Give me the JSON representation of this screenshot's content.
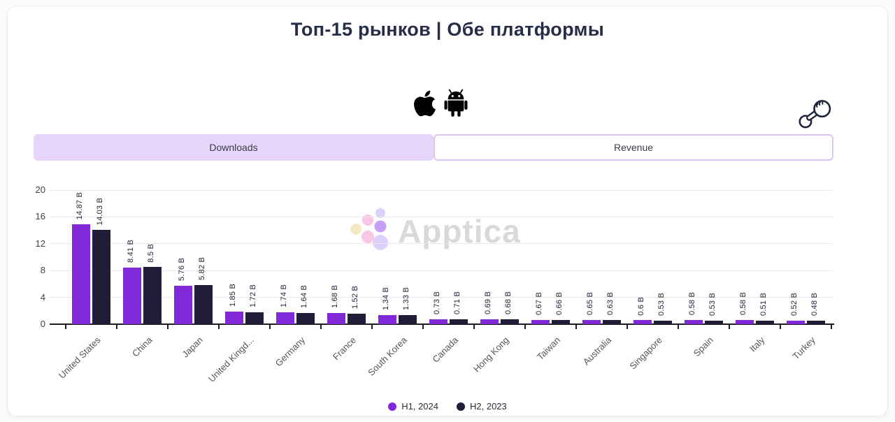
{
  "card": {
    "title": "Топ-15 рынков | Обе платформы"
  },
  "platform_icons": {
    "left": "apple-logo",
    "right": "android-robot"
  },
  "pointer_hint_icon": "hand-click",
  "tabs": [
    {
      "label": "Downloads",
      "active": true
    },
    {
      "label": "Revenue",
      "active": false
    }
  ],
  "watermark": {
    "text": "Apptica"
  },
  "colors": {
    "h1_2024": "#8129d9",
    "h2_2023": "#211d38",
    "active_tab_bg": "#e6d5f9",
    "tab_border": "#dcc6f8",
    "title_text": "#272d49"
  },
  "legend": [
    {
      "label": "H1, 2024",
      "color": "#8129d9"
    },
    {
      "label": "H2, 2023",
      "color": "#211d38"
    }
  ],
  "chart_data": {
    "type": "bar",
    "title": "Топ-15 рынков | Обе платформы",
    "categories": [
      "United States",
      "China",
      "Japan",
      "United Kingd...",
      "Germany",
      "France",
      "South Korea",
      "Canada",
      "Hong Kong",
      "Taiwan",
      "Australia",
      "Singapore",
      "Spain",
      "Italy",
      "Turkey"
    ],
    "series": [
      {
        "name": "H1, 2024",
        "color": "#8129d9",
        "values": [
          14.87,
          8.41,
          5.76,
          1.85,
          1.74,
          1.68,
          1.34,
          0.73,
          0.69,
          0.67,
          0.65,
          0.6,
          0.58,
          0.58,
          0.52
        ],
        "labels": [
          "14.87 B",
          "8.41 B",
          "5.76 B",
          "1.85 B",
          "1.74 B",
          "1.68 B",
          "1.34 B",
          "0.73 B",
          "0.69 B",
          "0.67 B",
          "0.65 B",
          "0.6 B",
          "0.58 B",
          "0.58 B",
          "0.52 B"
        ]
      },
      {
        "name": "H2, 2023",
        "color": "#211d38",
        "values": [
          14.03,
          8.5,
          5.82,
          1.72,
          1.64,
          1.52,
          1.33,
          0.71,
          0.68,
          0.66,
          0.63,
          0.53,
          0.53,
          0.51,
          0.48
        ],
        "labels": [
          "14.03 B",
          "8.5 B",
          "5.82 B",
          "1.72 B",
          "1.64 B",
          "1.52 B",
          "1.33 B",
          "0.71 B",
          "0.68 B",
          "0.66 B",
          "0.63 B",
          "0.53 B",
          "0.53 B",
          "0.51 B",
          "0.48 B"
        ]
      }
    ],
    "xlabel": "",
    "ylabel": "",
    "yticks": [
      0,
      4,
      8,
      12,
      16,
      20
    ],
    "ylim": [
      0,
      20
    ],
    "grid": true,
    "legend_position": "bottom"
  }
}
